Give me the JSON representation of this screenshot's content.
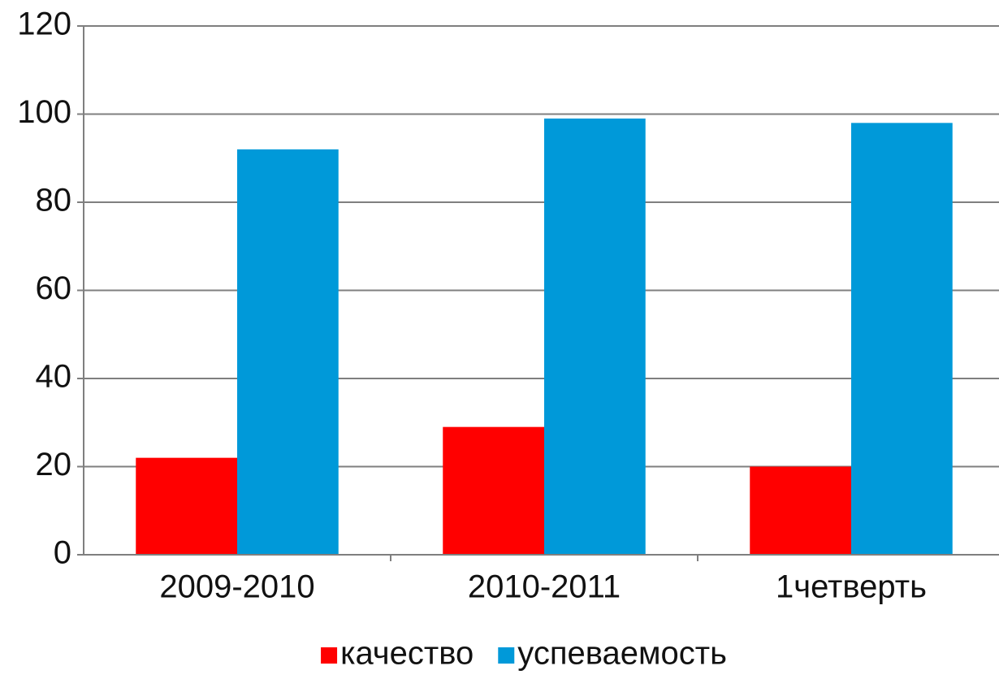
{
  "chart_data": {
    "type": "bar",
    "categories": [
      "2009-2010",
      "2010-2011",
      "1четверть"
    ],
    "series": [
      {
        "name": "качество",
        "color": "#ff0000",
        "values": [
          22,
          29,
          20
        ]
      },
      {
        "name": "успеваемость",
        "color": "#0099d9",
        "values": [
          92,
          99,
          98
        ]
      }
    ],
    "ylim": [
      0,
      120
    ],
    "yticks": [
      0,
      20,
      40,
      60,
      80,
      100,
      120
    ],
    "grid": true,
    "legend": "bottom"
  }
}
